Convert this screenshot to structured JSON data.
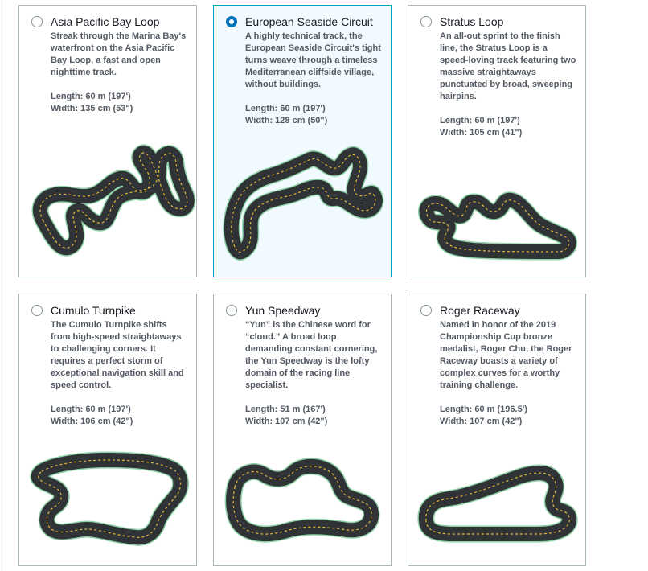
{
  "tracks": [
    {
      "name": "Asia Pacific Bay Loop",
      "description": "Streak through the Marina Bay's waterfront on the Asia Pacific Bay Loop, a fast and open nighttime track.",
      "length": "Length: 60 m (197')",
      "width": "Width: 135 cm (53\")",
      "selected": false,
      "icon": "asia-pacific-bay-loop-track-icon"
    },
    {
      "name": "European Seaside Circuit",
      "description": "A highly technical track, the European Seaside Circuit's tight turns weave through a timeless Mediterranean cliffside village, without buildings.",
      "length": "Length: 60 m (197')",
      "width": "Width: 128 cm (50\")",
      "selected": true,
      "icon": "european-seaside-circuit-track-icon"
    },
    {
      "name": "Stratus Loop",
      "description": "An all-out sprint to the finish line, the Stratus Loop is a speed-loving track featuring two massive straightaways punctuated by broad, sweeping hairpins.",
      "length": "Length: 60 m (197')",
      "width": "Width: 105 cm (41\")",
      "selected": false,
      "icon": "stratus-loop-track-icon"
    },
    {
      "name": "Cumulo Turnpike",
      "description": "The Cumulo Turnpike shifts from high-speed straightaways to challenging corners. It requires a perfect storm of exceptional navigation skill and speed control.",
      "length": "Length: 60 m (197')",
      "width": "Width: 106 cm (42\")",
      "selected": false,
      "icon": "cumulo-turnpike-track-icon"
    },
    {
      "name": "Yun Speedway",
      "description": "“Yun” is the Chinese word for “cloud.” A broad loop demanding constant cornering, the Yun Speedway is the lofty domain of the racing line specialist.",
      "length": "Length: 51 m (167')",
      "width": "Width: 107 cm (42\")",
      "selected": false,
      "icon": "yun-speedway-track-icon"
    },
    {
      "name": "Roger Raceway",
      "description": "Named in honor of the 2019 Championship Cup bronze medalist, Roger Chu, the Roger Raceway boasts a variety of complex curves for a worthy training challenge.",
      "length": "Length: 60 m (196.5')",
      "width": "Width: 107 cm (42\")",
      "selected": false,
      "icon": "roger-raceway-track-icon"
    }
  ],
  "colors": {
    "selected_border": "#00a1c9",
    "selected_background": "#f1faff",
    "radio_selected": "#0073bb",
    "track_asphalt": "#2f3336",
    "track_edge": "#8fd3a8",
    "track_centerline": "#e8b53a"
  }
}
